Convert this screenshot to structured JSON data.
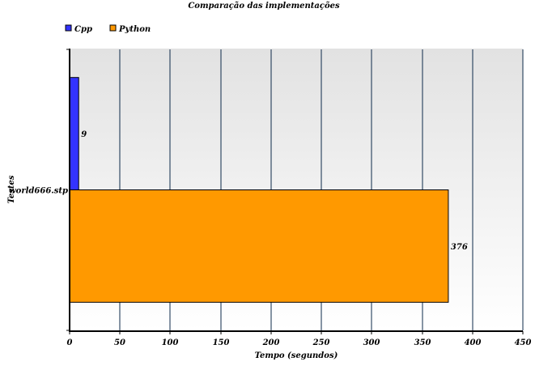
{
  "chart_data": {
    "type": "bar",
    "orientation": "horizontal",
    "title": "Comparação das implementações",
    "xlabel": "Tempo (segundos)",
    "ylabel": "Testes",
    "categories": [
      "world666.stp"
    ],
    "series": [
      {
        "name": "Cpp",
        "values": [
          9
        ],
        "color": "#3333ff"
      },
      {
        "name": "Python",
        "values": [
          376
        ],
        "color": "#ff9900"
      }
    ],
    "xlim": [
      0,
      450
    ],
    "xticks": [
      0,
      50,
      100,
      150,
      200,
      250,
      300,
      350,
      400,
      450
    ],
    "grid": true,
    "legend_position": "top-left",
    "data_labels": true
  }
}
